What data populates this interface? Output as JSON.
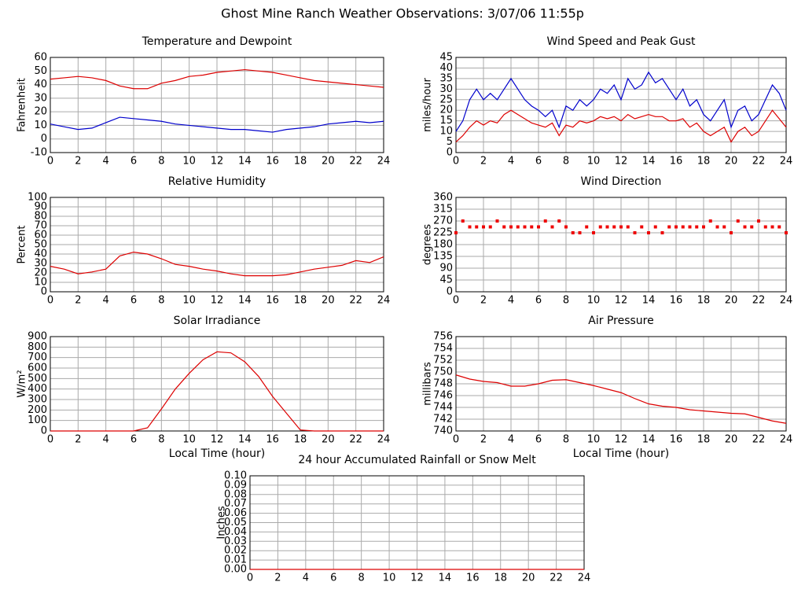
{
  "page_title": "Ghost Mine Ranch Weather Observations: 3/07/06 11:55p",
  "chart_data": [
    {
      "type": "line",
      "title": "Temperature and Dewpoint",
      "y_label": "Fahrenheit",
      "x": [
        0,
        1,
        2,
        3,
        4,
        5,
        6,
        7,
        8,
        9,
        10,
        11,
        12,
        13,
        14,
        15,
        16,
        17,
        18,
        19,
        20,
        21,
        22,
        23,
        24
      ],
      "series": [
        {
          "color": "#dd0000",
          "values": [
            44,
            45,
            46,
            45,
            43,
            39,
            37,
            37,
            41,
            43,
            46,
            47,
            49,
            50,
            51,
            50,
            49,
            47,
            45,
            43,
            42,
            41,
            40,
            39,
            38
          ]
        },
        {
          "color": "#0000cc",
          "values": [
            11,
            9,
            7,
            8,
            12,
            16,
            15,
            14,
            13,
            11,
            10,
            9,
            8,
            7,
            7,
            6,
            5,
            7,
            8,
            9,
            11,
            12,
            13,
            12,
            13
          ]
        }
      ],
      "xlim": [
        0,
        24
      ],
      "xticks": [
        0,
        2,
        4,
        6,
        8,
        10,
        12,
        14,
        16,
        18,
        20,
        22,
        24
      ],
      "ylim": [
        -10,
        60
      ],
      "yticks": [
        -10,
        0,
        10,
        20,
        30,
        40,
        50,
        60
      ],
      "grid": true
    },
    {
      "type": "line",
      "title": "Wind Speed and Peak Gust",
      "y_label": "miles/hour",
      "x": [
        0,
        0.5,
        1,
        1.5,
        2,
        2.5,
        3,
        3.5,
        4,
        4.5,
        5,
        5.5,
        6,
        6.5,
        7,
        7.5,
        8,
        8.5,
        9,
        9.5,
        10,
        10.5,
        11,
        11.5,
        12,
        12.5,
        13,
        13.5,
        14,
        14.5,
        15,
        15.5,
        16,
        16.5,
        17,
        17.5,
        18,
        18.5,
        19,
        19.5,
        20,
        20.5,
        21,
        21.5,
        22,
        22.5,
        23,
        23.5,
        24
      ],
      "series": [
        {
          "color": "#0000cc",
          "values": [
            10,
            15,
            25,
            30,
            25,
            28,
            25,
            30,
            35,
            30,
            25,
            22,
            20,
            17,
            20,
            12,
            22,
            20,
            25,
            22,
            25,
            30,
            28,
            32,
            25,
            35,
            30,
            32,
            38,
            33,
            35,
            30,
            25,
            30,
            22,
            25,
            18,
            15,
            20,
            25,
            12,
            20,
            22,
            15,
            18,
            25,
            32,
            28,
            20
          ]
        },
        {
          "color": "#dd0000",
          "values": [
            5,
            8,
            12,
            15,
            13,
            15,
            14,
            18,
            20,
            18,
            16,
            14,
            13,
            12,
            14,
            8,
            13,
            12,
            15,
            14,
            15,
            17,
            16,
            17,
            15,
            18,
            16,
            17,
            18,
            17,
            17,
            15,
            15,
            16,
            12,
            14,
            10,
            8,
            10,
            12,
            5,
            10,
            12,
            8,
            10,
            15,
            20,
            16,
            12
          ]
        }
      ],
      "xlim": [
        0,
        24
      ],
      "xticks": [
        0,
        2,
        4,
        6,
        8,
        10,
        12,
        14,
        16,
        18,
        20,
        22,
        24
      ],
      "ylim": [
        0,
        45
      ],
      "yticks": [
        0,
        5,
        10,
        15,
        20,
        25,
        30,
        35,
        40,
        45
      ],
      "grid": true
    },
    {
      "type": "line",
      "title": "Relative Humidity",
      "y_label": "Percent",
      "x": [
        0,
        1,
        2,
        3,
        4,
        5,
        6,
        7,
        8,
        9,
        10,
        11,
        12,
        13,
        14,
        15,
        16,
        17,
        18,
        19,
        20,
        21,
        22,
        23,
        24
      ],
      "series": [
        {
          "color": "#dd0000",
          "values": [
            27,
            24,
            19,
            21,
            24,
            38,
            42,
            40,
            35,
            29,
            27,
            24,
            22,
            19,
            17,
            17,
            17,
            18,
            21,
            24,
            26,
            28,
            33,
            31,
            37
          ]
        }
      ],
      "xlim": [
        0,
        24
      ],
      "xticks": [
        0,
        2,
        4,
        6,
        8,
        10,
        12,
        14,
        16,
        18,
        20,
        22,
        24
      ],
      "ylim": [
        0,
        100
      ],
      "yticks": [
        0,
        10,
        20,
        30,
        40,
        50,
        60,
        70,
        80,
        90,
        100
      ],
      "grid": true
    },
    {
      "type": "scatter",
      "title": "Wind Direction",
      "y_label": "degrees",
      "color": "#ee0000",
      "x": [
        0,
        0.5,
        1,
        1.5,
        2,
        2.5,
        3,
        3.5,
        4,
        4.5,
        5,
        5.5,
        6,
        6.5,
        7,
        7.5,
        8,
        8.5,
        9,
        9.5,
        10,
        10.5,
        11,
        11.5,
        12,
        12.5,
        13,
        13.5,
        14,
        14.5,
        15,
        15.5,
        16,
        16.5,
        17,
        17.5,
        18,
        18.5,
        19,
        19.5,
        20,
        20.5,
        21,
        21.5,
        22,
        22.5,
        23,
        23.5,
        24
      ],
      "values": [
        225,
        270,
        247.5,
        247.5,
        247.5,
        247.5,
        270,
        247.5,
        247.5,
        247.5,
        247.5,
        247.5,
        247.5,
        270,
        247.5,
        270,
        247.5,
        225,
        225,
        247.5,
        225,
        247.5,
        247.5,
        247.5,
        247.5,
        247.5,
        225,
        247.5,
        225,
        247.5,
        225,
        247.5,
        247.5,
        247.5,
        247.5,
        247.5,
        247.5,
        270,
        247.5,
        247.5,
        225,
        270,
        247.5,
        247.5,
        270,
        247.5,
        247.5,
        247.5,
        225
      ],
      "xlim": [
        0,
        24
      ],
      "xticks": [
        0,
        2,
        4,
        6,
        8,
        10,
        12,
        14,
        16,
        18,
        20,
        22,
        24
      ],
      "ylim": [
        0,
        360
      ],
      "yticks": [
        0,
        45,
        90,
        135,
        180,
        225,
        270,
        315,
        360
      ],
      "grid": true
    },
    {
      "type": "line",
      "title": "Solar Irradiance",
      "y_label": "W/m²",
      "x_label": "Local Time (hour)",
      "x": [
        0,
        1,
        2,
        3,
        4,
        5,
        6,
        7,
        8,
        9,
        10,
        11,
        12,
        13,
        14,
        15,
        16,
        17,
        18,
        19,
        20,
        21,
        22,
        23,
        24
      ],
      "series": [
        {
          "color": "#dd0000",
          "values": [
            0,
            0,
            0,
            0,
            0,
            0,
            0,
            30,
            210,
            400,
            550,
            680,
            755,
            745,
            660,
            520,
            330,
            170,
            10,
            0,
            0,
            0,
            0,
            0,
            0
          ]
        }
      ],
      "xlim": [
        0,
        24
      ],
      "xticks": [
        0,
        2,
        4,
        6,
        8,
        10,
        12,
        14,
        16,
        18,
        20,
        22,
        24
      ],
      "ylim": [
        0,
        900
      ],
      "yticks": [
        0,
        100,
        200,
        300,
        400,
        500,
        600,
        700,
        800,
        900
      ],
      "grid": true
    },
    {
      "type": "line",
      "title": "Air Pressure",
      "y_label": "millibars",
      "x_label": "Local Time (hour)",
      "x": [
        0,
        1,
        2,
        3,
        4,
        5,
        6,
        7,
        8,
        9,
        10,
        11,
        12,
        13,
        14,
        15,
        16,
        17,
        18,
        19,
        20,
        21,
        22,
        23,
        24
      ],
      "series": [
        {
          "color": "#dd0000",
          "values": [
            749.5,
            748.8,
            748.4,
            748.2,
            747.6,
            747.6,
            748,
            748.6,
            748.7,
            748.2,
            747.7,
            747.1,
            746.5,
            745.5,
            744.6,
            744.2,
            744,
            743.6,
            743.4,
            743.2,
            743,
            742.9,
            742.3,
            741.7,
            741.3
          ]
        }
      ],
      "xlim": [
        0,
        24
      ],
      "xticks": [
        0,
        2,
        4,
        6,
        8,
        10,
        12,
        14,
        16,
        18,
        20,
        22,
        24
      ],
      "ylim": [
        740,
        756
      ],
      "yticks": [
        740,
        742,
        744,
        746,
        748,
        750,
        752,
        754,
        756
      ],
      "grid": true
    },
    {
      "type": "line",
      "title": "24 hour Accumulated Rainfall or Snow Melt",
      "y_label": "Inches",
      "x": [
        0,
        1,
        2,
        3,
        4,
        5,
        6,
        7,
        8,
        9,
        10,
        11,
        12,
        13,
        14,
        15,
        16,
        17,
        18,
        19,
        20,
        21,
        22,
        23,
        24
      ],
      "series": [
        {
          "color": "#dd0000",
          "values": [
            0,
            0,
            0,
            0,
            0,
            0,
            0,
            0,
            0,
            0,
            0,
            0,
            0,
            0,
            0,
            0,
            0,
            0,
            0,
            0,
            0,
            0,
            0,
            0,
            0
          ]
        }
      ],
      "xlim": [
        0,
        24
      ],
      "xticks": [
        0,
        2,
        4,
        6,
        8,
        10,
        12,
        14,
        16,
        18,
        20,
        22,
        24
      ],
      "ylim": [
        0,
        0.1
      ],
      "yticks": [
        {
          "value": 0,
          "label": "0.00"
        },
        {
          "value": 0.01,
          "label": "0.01"
        },
        {
          "value": 0.02,
          "label": "0.02"
        },
        {
          "value": 0.03,
          "label": "0.03"
        },
        {
          "value": 0.04,
          "label": "0.04"
        },
        {
          "value": 0.05,
          "label": "0.05"
        },
        {
          "value": 0.06,
          "label": "0.06"
        },
        {
          "value": 0.07,
          "label": "0.07"
        },
        {
          "value": 0.08,
          "label": "0.08"
        },
        {
          "value": 0.09,
          "label": "0.09"
        },
        {
          "value": 0.1,
          "label": "0.10"
        }
      ],
      "grid": true
    }
  ]
}
